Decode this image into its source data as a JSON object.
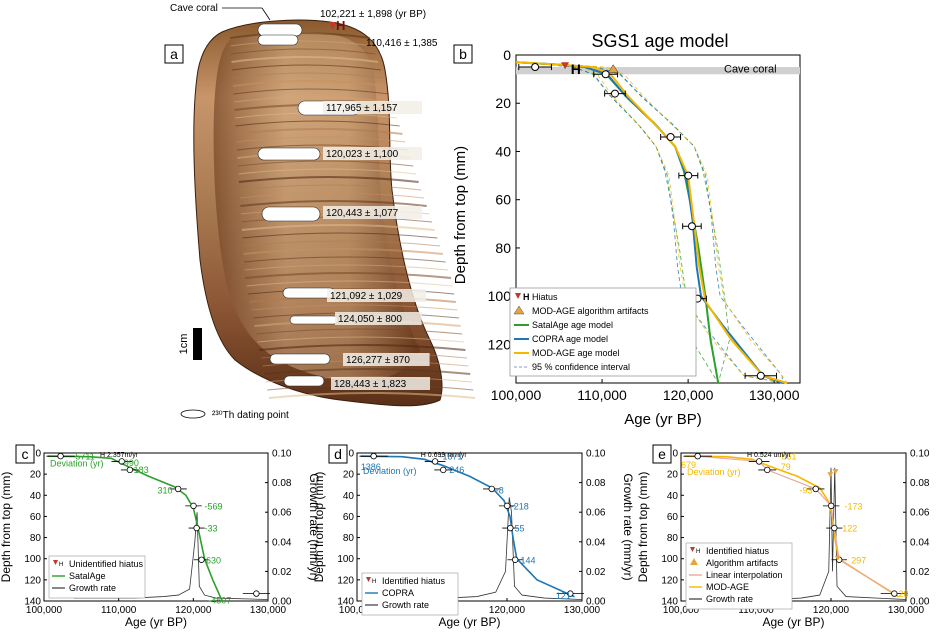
{
  "colors": {
    "satal": "#2ca02c",
    "copra": "#1f77b4",
    "modage": "#f5b800",
    "hiatus": "#c0392b",
    "artifact": "#e8a33c",
    "growth": "#333333",
    "gray": "#d0d0d0"
  },
  "panel_a": {
    "label": "a",
    "cave_coral": "Cave coral",
    "scale": "1cm",
    "legend": "²³⁰Th dating point",
    "dates": [
      {
        "text": "102,221 ± 1,898 (yr BP)"
      },
      {
        "text": "110,416 ± 1,385"
      },
      {
        "text": "117,965 ± 1,157"
      },
      {
        "text": "120,023 ± 1,100"
      },
      {
        "text": "120,443 ± 1,077"
      },
      {
        "text": "121,092 ± 1,029"
      },
      {
        "text": "124,050 ± 800"
      },
      {
        "text": "126,277 ± 870"
      },
      {
        "text": "128,443 ± 1,823"
      }
    ],
    "hiatus_mark": "H"
  },
  "panel_b": {
    "label": "b",
    "title": "SGS1 age model",
    "xlabel": "Age (yr BP)",
    "ylabel": "Depth from top (mm)",
    "xticks": [
      "100,000",
      "110,000",
      "120,000",
      "130,000"
    ],
    "yticks": [
      "0",
      "20",
      "40",
      "60",
      "80",
      "100",
      "120"
    ],
    "band_label": "Cave coral",
    "hiatus_mark": "H",
    "legend": [
      "Hiatus",
      "MOD-AGE algorithm artifacts",
      "SatalAge age model",
      "COPRA age model",
      "MOD-AGE age model",
      "95 % confidence interval"
    ],
    "legend_hiatus_mark": "H"
  },
  "panel_c": {
    "label": "c",
    "xlabel": "Age (yr BP)",
    "ylabel": "Depth from top (mm)",
    "y2label": "Growth rate (mm/yr)",
    "xticks": [
      "100,000",
      "110,000",
      "120,000",
      "130,000"
    ],
    "yticks": [
      "0",
      "20",
      "40",
      "60",
      "80",
      "100",
      "120",
      "140"
    ],
    "y2ticks": [
      "0.10",
      "0.08",
      "0.06",
      "0.04",
      "0.02",
      "0.00"
    ],
    "growth_note": "H 2.357m/yr",
    "deviation": "Deviation (yr)",
    "devs": [
      "5711",
      "-990",
      "183",
      "310",
      "-569",
      "-33",
      "630",
      "-4507"
    ],
    "legend": [
      "Unidentified hiatus",
      "SatalAge",
      "Growth rate"
    ],
    "legend_mark": "H"
  },
  "panel_d": {
    "label": "d",
    "xlabel": "Age (yr BP)",
    "ylabel": "Depth from top (mm)",
    "y2label": "Growth rate (mm/yr)",
    "xticks": [
      "100,000",
      "110,000",
      "120,000",
      "130,000"
    ],
    "yticks": [
      "0",
      "20",
      "40",
      "60",
      "80",
      "100",
      "120",
      "140"
    ],
    "y2ticks": [
      "0.10",
      "0.08",
      "0.06",
      "0.04",
      "0.02",
      "0.00"
    ],
    "growth_note": "H 0.699 mm/yr",
    "deviation": "Deviation (yr)",
    "devs": [
      "1386",
      "-1871",
      "246",
      "-8",
      "-218",
      "55",
      "144",
      "121"
    ],
    "legend": [
      "Identified hiatus",
      "COPRA",
      "Growth rate"
    ],
    "legend_mark": "H"
  },
  "panel_e": {
    "label": "e",
    "xlabel": "Age (yr BP)",
    "ylabel": "Depth from top (mm)",
    "y2label": "Growth rate (mm/yr)",
    "xticks": [
      "100,000",
      "110,000",
      "120,000",
      "130,000"
    ],
    "yticks": [
      "0",
      "20",
      "40",
      "60",
      "80",
      "100",
      "120",
      "140"
    ],
    "y2ticks": [
      "0.10",
      "0.08",
      "0.06",
      "0.04",
      "0.02",
      "0.00"
    ],
    "growth_note": "H 0.524 um/yr",
    "deviation": "Deviation (yr)",
    "devs": [
      "679",
      "-861",
      "79",
      "-93",
      "-173",
      "122",
      "297",
      "28"
    ],
    "legend": [
      "Identified hiatus",
      "Algorithm artifacts",
      "Linear interpolation",
      "MOD-AGE",
      "Growth rate"
    ],
    "legend_mark": "H"
  },
  "chart_data": [
    {
      "type": "line",
      "title": "SGS1 age model",
      "xlabel": "Age (yr BP)",
      "ylabel": "Depth from top (mm)",
      "xlim": [
        100000,
        133000
      ],
      "ylim": [
        136,
        0
      ],
      "dating_points": [
        {
          "age": 102221,
          "err": 1898,
          "depth": 5
        },
        {
          "age": 110416,
          "err": 1385,
          "depth": 8
        },
        {
          "age": 111500,
          "err": 1200,
          "depth": 16
        },
        {
          "age": 117965,
          "err": 1157,
          "depth": 34
        },
        {
          "age": 120023,
          "err": 1100,
          "depth": 50
        },
        {
          "age": 120443,
          "err": 1077,
          "depth": 71
        },
        {
          "age": 121092,
          "err": 1029,
          "depth": 101
        },
        {
          "age": 128443,
          "err": 1823,
          "depth": 133
        }
      ],
      "series": [
        {
          "name": "SatalAge age model",
          "color": "#2ca02c",
          "x": [
            100000,
            105000,
            108000,
            110500,
            113000,
            116000,
            118500,
            119500,
            120300,
            121200,
            122000,
            122600,
            123500
          ],
          "y": [
            3,
            4,
            5,
            8,
            18,
            28,
            38,
            48,
            62,
            80,
            100,
            118,
            136
          ]
        },
        {
          "name": "COPRA age model",
          "color": "#1f77b4",
          "x": [
            100000,
            105000,
            108000,
            110600,
            112500,
            116500,
            118500,
            119800,
            120500,
            121000,
            121500,
            124000,
            128700,
            131000
          ],
          "y": [
            3,
            4,
            5,
            8,
            16,
            30,
            38,
            50,
            68,
            88,
            100,
            112,
            133,
            136
          ]
        },
        {
          "name": "MOD-AGE age model",
          "color": "#f5b800",
          "x": [
            100000,
            105000,
            109000,
            111000,
            113000,
            117000,
            118500,
            120000,
            120700,
            121300,
            122000,
            125000,
            128700,
            131500
          ],
          "y": [
            3,
            4,
            5,
            8,
            17,
            32,
            38,
            50,
            70,
            88,
            102,
            118,
            133,
            136
          ]
        }
      ]
    }
  ]
}
